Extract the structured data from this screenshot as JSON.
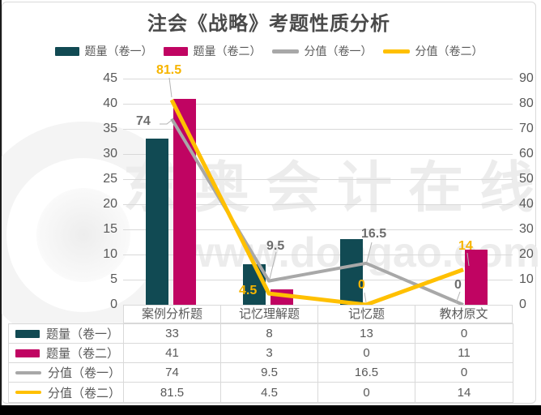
{
  "page": {
    "watermark": {
      "brand": "东奥会计在线",
      "url": "www.dongao.com"
    }
  },
  "chart": {
    "title": "注会《战略》考题性质分析"
  },
  "colors": {
    "bar_vol1": "#114a53",
    "bar_vol2": "#c00462",
    "line_score1": "#a8a8a8",
    "line_score2": "#ffc000",
    "label_gray": "#6d6d6d",
    "label_yellow": "#f7b500",
    "axis_text": "#595959",
    "gridline": "#d9d9d9"
  },
  "chart_data": {
    "type": "combo-bar-line",
    "title": "注会《战略》考题性质分析",
    "categories": [
      "案例分析题",
      "记忆理解题",
      "记忆题",
      "教材原文"
    ],
    "series": [
      {
        "name": "题量（卷一）",
        "type": "bar",
        "axis": "left",
        "color": "#114a53",
        "values": [
          33,
          8,
          13,
          0
        ]
      },
      {
        "name": "题量（卷二）",
        "type": "bar",
        "axis": "left",
        "color": "#c00462",
        "values": [
          41,
          3,
          0,
          11
        ]
      },
      {
        "name": "分值（卷一）",
        "type": "line",
        "axis": "right",
        "color": "#a8a8a8",
        "values": [
          74,
          9.5,
          16.5,
          0
        ]
      },
      {
        "name": "分值（卷二）",
        "type": "line",
        "axis": "right",
        "color": "#ffc000",
        "values": [
          81.5,
          4.5,
          0,
          14
        ]
      }
    ],
    "left_axis": {
      "min": 0,
      "max": 45,
      "step": 5,
      "ticks": [
        45,
        40,
        35,
        30,
        25,
        20,
        15,
        10,
        5,
        0
      ]
    },
    "right_axis": {
      "min": 0,
      "max": 90,
      "step": 10,
      "ticks": [
        90,
        80,
        70,
        60,
        50,
        40,
        30,
        20,
        10,
        0
      ]
    },
    "legend_position": "top",
    "grid": true,
    "data_table_shown": true,
    "labeled_series": [
      "分值（卷一）",
      "分值（卷二）"
    ]
  }
}
